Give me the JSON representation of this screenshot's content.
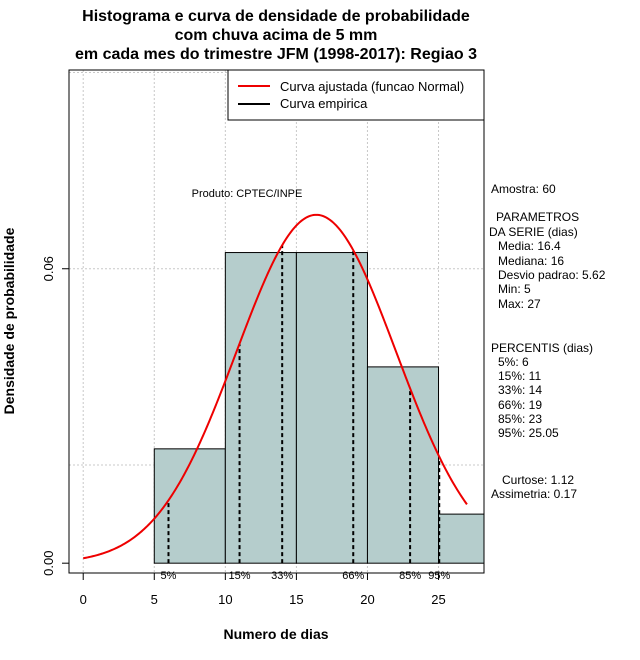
{
  "chart_data": {
    "type": "bar",
    "title_lines": [
      "Histograma e curva de densidade de probabilidade",
      "com chuva acima de 5 mm",
      "em cada mes do trimestre JFM (1998-2017): Regiao 3"
    ],
    "xlabel": "Numero de dias",
    "ylabel": "Densidade de probabilidade",
    "xlim": [
      -1,
      28.2
    ],
    "ylim": [
      -0.002,
      0.1005
    ],
    "xticks": [
      0,
      5,
      10,
      15,
      20,
      25
    ],
    "yticks": [
      0.0,
      0.06
    ],
    "ytick_labels": [
      "0.00",
      "0.06"
    ],
    "grid_x": [
      0,
      5,
      10,
      15,
      20,
      25
    ],
    "grid_y": [
      0.02,
      0.06,
      0.1
    ],
    "bins": [
      5,
      10,
      15,
      20,
      25,
      30
    ],
    "densities": [
      0.0233,
      0.0633,
      0.0633,
      0.04,
      0.01
    ],
    "bar_color": "#b5cdcc",
    "normal_fit": {
      "mean": 16.4,
      "sd": 5.62,
      "x_min": 0,
      "x_max": 27,
      "color": "#ee0000"
    },
    "percentile_lines": [
      {
        "x": 6,
        "label": "5%"
      },
      {
        "x": 11,
        "label": "15%"
      },
      {
        "x": 14,
        "label": "33%"
      },
      {
        "x": 19,
        "label": "66%"
      },
      {
        "x": 23,
        "label": "85%"
      },
      {
        "x": 25.05,
        "label": "95%"
      }
    ],
    "legend": [
      {
        "label": "Curva ajustada (funcao Normal)",
        "color": "#ee0000"
      },
      {
        "label": "Curva empirica",
        "color": "#000000"
      }
    ],
    "annotation": "Produto: CPTEC/INPE"
  },
  "stats_panel": {
    "amostra": "Amostra: 60",
    "parametros_title_1": "PARAMETROS",
    "parametros_title_2": "DA SERIE (dias)",
    "media": "Media: 16.4",
    "mediana": "Mediana: 16",
    "desvio": "Desvio padrao: 5.62",
    "min": "Min: 5",
    "max": "Max: 27",
    "percentis_title": "PERCENTIS (dias)",
    "p5": "5%: 6",
    "p15": "15%: 11",
    "p33": "33%: 14",
    "p66": "66%: 19",
    "p85": "85%: 23",
    "p95": "95%: 25.05",
    "curtose": "Curtose: 1.12",
    "assimetria": "Assimetria: 0.17"
  }
}
